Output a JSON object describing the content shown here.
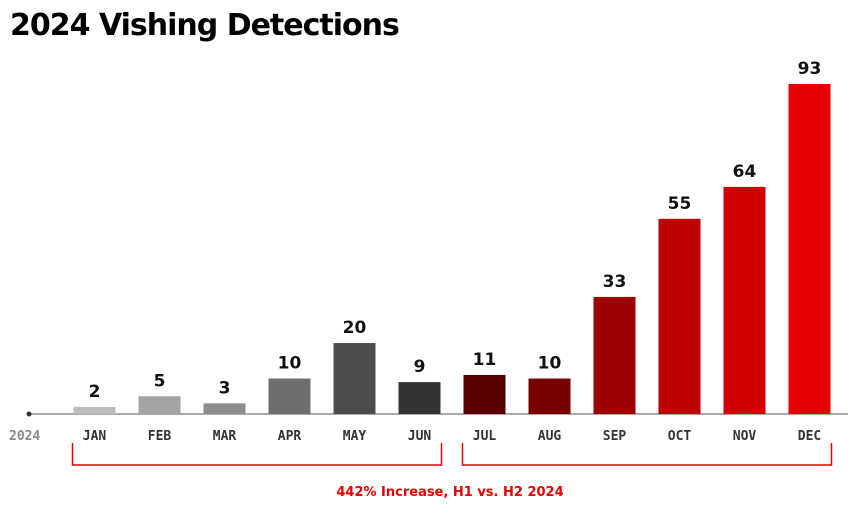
{
  "colors": {
    "accent": "#e60000",
    "axis": "#555555"
  },
  "chart_data": {
    "type": "bar",
    "title": "2024 Vishing Detections",
    "xlabel": "2024",
    "ylabel": "",
    "categories": [
      "JAN",
      "FEB",
      "MAR",
      "APR",
      "MAY",
      "JUN",
      "JUL",
      "AUG",
      "SEP",
      "OCT",
      "NOV",
      "DEC"
    ],
    "values": [
      2,
      5,
      3,
      10,
      20,
      9,
      11,
      10,
      33,
      55,
      64,
      93
    ],
    "bar_colors": [
      "#bdbdbd",
      "#a3a3a3",
      "#8d8d8d",
      "#6e6e6e",
      "#4d4d4d",
      "#333333",
      "#5a0000",
      "#760000",
      "#9c0000",
      "#bd0000",
      "#d20000",
      "#e60000"
    ],
    "ylim": [
      0,
      93
    ],
    "grid": false,
    "legend": "none",
    "annotation": "442% Increase, H1 vs. H2 2024",
    "groups": [
      {
        "label": "H1",
        "from": 0,
        "to": 5
      },
      {
        "label": "H2",
        "from": 6,
        "to": 11
      }
    ]
  }
}
